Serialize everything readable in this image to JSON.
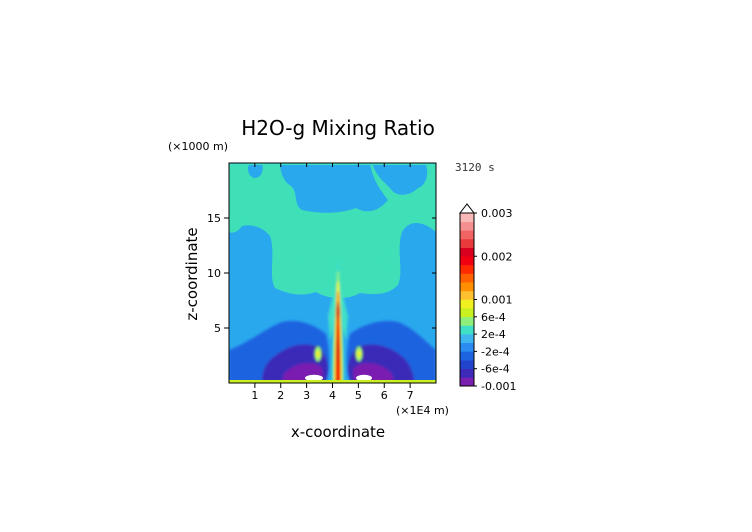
{
  "chart_data": {
    "type": "heatmap",
    "title": "H2O-g Mixing Ratio",
    "xlabel": "x-coordinate",
    "ylabel": "z-coordinate",
    "x_unit": "(×1E4 m)",
    "y_unit": "(×1000 m)",
    "time_label": "3120 s",
    "xlim": [
      0,
      8
    ],
    "ylim": [
      0,
      20
    ],
    "x_ticks": [
      "1",
      "2",
      "3",
      "4",
      "5",
      "6",
      "7"
    ],
    "y_ticks": [
      "5",
      "10",
      "15"
    ],
    "colorbar": {
      "colors": [
        "#7a1fb0",
        "#3b2bb8",
        "#2244cc",
        "#1d64e0",
        "#2a8cf0",
        "#3fb6f0",
        "#40e0c8",
        "#8ef07a",
        "#c8f020",
        "#f0f020",
        "#ffc030",
        "#ff8f00",
        "#ff6000",
        "#ff2a00",
        "#f00010",
        "#d8001e",
        "#e83a3a",
        "#f06464",
        "#f49090",
        "#f8b8b8"
      ],
      "tick_labels": [
        {
          "label": "0.003",
          "value": 0.003
        },
        {
          "label": "0.002",
          "value": 0.002
        },
        {
          "label": "0.001",
          "value": 0.001
        },
        {
          "label": "6e-4",
          "value": 0.0006
        },
        {
          "label": "2e-4",
          "value": 0.0002
        },
        {
          "label": "-2e-4",
          "value": -0.0002
        },
        {
          "label": "-6e-4",
          "value": -0.0006
        },
        {
          "label": "-0.001",
          "value": -0.001
        }
      ]
    },
    "field_description": "Anomaly field: background 0 to -2e-4 (cyan/blue) at upper levels; central column at x≈4 with values up to ~0.003; negative lobes (to about -0.001) near surface at x≈3 and x≈5"
  }
}
